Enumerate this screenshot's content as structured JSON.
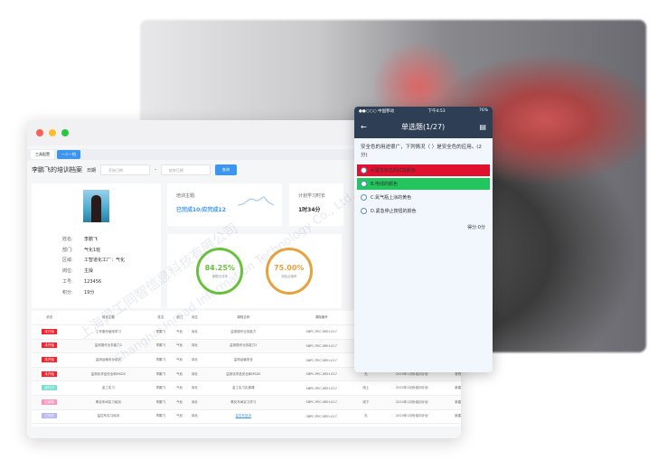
{
  "window": {
    "tabs": [
      {
        "label": "工具配置"
      },
      {
        "label": "一人一档"
      }
    ],
    "title": "李鹏飞的培训档案",
    "date_label": "日期",
    "start_ph": "开始日期",
    "end_ph": "结束日期",
    "query": "查询"
  },
  "profile": {
    "fields": [
      [
        "姓名:",
        "李鹏飞"
      ],
      [
        "部门:",
        "气化1班"
      ],
      [
        "区域:",
        "工智道化工厂：气化"
      ],
      [
        "岗位:",
        "主操"
      ],
      [
        "工号:",
        "123456"
      ],
      [
        "积分:",
        "19分"
      ]
    ]
  },
  "stats": {
    "topic_label": "培训主题:",
    "topic_value": "已完成10/应完成12",
    "hours_label": "计划学习时长",
    "hours_value": "1时34分",
    "ring1_value": "84.25%",
    "ring1_label": "课题完成率",
    "ring1_color": "#67c23a",
    "ring2_value": "75.00%",
    "ring2_label": "测验合格率",
    "ring2_color": "#e6a23c"
  },
  "table": {
    "headers": [
      "状态",
      "培训主题",
      "姓名",
      "部门",
      "岗位",
      "课程名称",
      "课程编号",
      "方式",
      "计划",
      "备注"
    ],
    "rows": [
      {
        "status": "未开始",
        "color": "#f5222d",
        "cells": [
          "工作股份使用学习",
          "李鹏飞",
          "气化",
          "岗长",
          "监测操作业务能力",
          "SBPC-PEC-MEH-017",
          "",
          "",
          ""
        ]
      },
      {
        "status": "未开始",
        "color": "#f5222d",
        "cells": [
          "监测操作业务能力2",
          "李鹏飞",
          "气化",
          "岗长",
          "监测操作业务能力2",
          "SBPC-PEC-MEH-017",
          "",
          "",
          ""
        ]
      },
      {
        "status": "未开始",
        "color": "#f5222d",
        "cells": [
          "监测运输安全培训",
          "李鹏飞",
          "气化",
          "岗长",
          "监测运输安全",
          "SBPC-PEC-MEH-017",
          "",
          "",
          ""
        ]
      },
      {
        "status": "未开始",
        "color": "#f5222d",
        "cells": [
          "监测化学品安全和MSDS",
          "李鹏飞",
          "气化",
          "岗长",
          "监测化学品安全和MSDS",
          "SBPC-PEC-MEH-017",
          "无",
          "2020年1月份培训计划",
          "常规"
        ]
      },
      {
        "status": "进行中",
        "color": "#7ee0d0",
        "cells": [
          "金工实习",
          "李鹏飞",
          "气化",
          "岗长",
          "金工实习实操课",
          "SBPC-PEC-MEH-017",
          "线上",
          "2020年1月份培训计划",
          "新建"
        ]
      },
      {
        "status": "已逾期",
        "color": "#f59ac0",
        "cells": [
          "氧化车间实习培训",
          "李鹏飞",
          "气化",
          "岗长",
          "氧化车间实习学习",
          "SBPC-PEC-MEH-017",
          "线下",
          "2020年1月份培训计划",
          "新建"
        ]
      },
      {
        "status": "已完成",
        "color": "#b9b6f5",
        "cells": [
          "监控车实习培训",
          "李鹏飞",
          "气化",
          "岗长",
          "监控车复训",
          "SBPC-PEC-MEH-017",
          "无",
          "2020年1月份培训计划",
          "新建"
        ]
      }
    ]
  },
  "phone": {
    "carrier": "●●○○○ 中国移动",
    "time": "下午4:53",
    "battery": "76%",
    "title": "单选题(1/27)",
    "question": "安全色的用途很广，下列情况（ ）是安全色的应用。(2分)",
    "options": [
      {
        "label": "A.警告标志的红底颜色",
        "bg": "#e0102e"
      },
      {
        "label": "B.电线的颜色",
        "bg": "#22c55e"
      },
      {
        "label": "C.氮气瓶上涂的黄色",
        "bg": ""
      },
      {
        "label": "D.紧急停止按钮的颜色",
        "bg": ""
      }
    ],
    "score": "得分:0分"
  },
  "watermark": {
    "cn": "上海异工同智信息科技有限公司",
    "en": "Shanghai Inroad Information Technology Co., Ltd."
  }
}
